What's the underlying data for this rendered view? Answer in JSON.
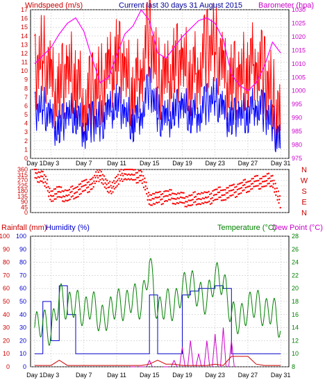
{
  "colors": {
    "wind_speed": "#ff0000",
    "wind_gust": "#0000ff",
    "barometer": "#ff00ff",
    "wind_dir": "#ff0000",
    "rainfall": "#cc0000",
    "humidity": "#0000cc",
    "temperature": "#008000",
    "dew_point": "#cc00cc",
    "title": "#000099",
    "grid": "#c8c8c8"
  },
  "chart_data": [
    {
      "type": "line",
      "title": "Current last 30 days 31 August 2015",
      "left_axis_label": "Windspeed (m/s)",
      "right_axis_label": "Barometer (hpa)",
      "left_ticks": [
        "0",
        "1",
        "2",
        "3",
        "4",
        "5",
        "6",
        "7",
        "8",
        "9",
        "10",
        "11",
        "12",
        "13",
        "14",
        "15",
        "16",
        "17"
      ],
      "right_ticks": [
        "975",
        "980",
        "985",
        "990",
        "995",
        "1000",
        "1005",
        "1010",
        "1015",
        "1020",
        "1025",
        "1030"
      ],
      "ylim_left": [
        0,
        17
      ],
      "ylim_right": [
        975,
        1030
      ],
      "x_labels": [
        "Day 1",
        "Day 3",
        "Day 7",
        "Day 11",
        "Day 15",
        "Day 19",
        "Day 23",
        "Day 27",
        "Day 31"
      ],
      "x_label_days": [
        1,
        3,
        7,
        11,
        15,
        19,
        23,
        27,
        31
      ],
      "xlim_days": [
        0.5,
        32
      ],
      "series": [
        {
          "key": "wind_speed",
          "style": "red",
          "x": [
            1,
            2,
            3,
            4,
            5,
            6,
            7,
            8,
            9,
            10,
            11,
            12,
            13,
            14,
            15,
            16,
            17,
            18,
            19,
            20,
            21,
            22,
            23,
            24,
            25,
            26,
            27,
            28,
            29,
            30,
            31
          ],
          "values": [
            9,
            12,
            8,
            7,
            10,
            9,
            6,
            7,
            8,
            9,
            11,
            10,
            7,
            10,
            14,
            9,
            8,
            10,
            11,
            9,
            10,
            12,
            13,
            9,
            8,
            9,
            10,
            11,
            9,
            7,
            3
          ]
        },
        {
          "key": "wind_gust",
          "style": "blue",
          "x": [
            1,
            2,
            3,
            4,
            5,
            6,
            7,
            8,
            9,
            10,
            11,
            12,
            13,
            14,
            15,
            16,
            17,
            18,
            19,
            20,
            21,
            22,
            23,
            24,
            25,
            26,
            27,
            28,
            29,
            30,
            31
          ],
          "values": [
            5,
            6,
            4,
            3,
            5,
            5,
            3,
            4,
            4,
            5,
            6,
            5,
            4,
            5,
            8,
            5,
            4,
            5,
            6,
            5,
            5,
            6,
            7,
            5,
            4,
            5,
            5,
            6,
            5,
            4,
            1
          ]
        },
        {
          "key": "barometer",
          "style": "magenta",
          "x": [
            1,
            2,
            3,
            4,
            5,
            6,
            7,
            8,
            9,
            10,
            11,
            12,
            13,
            14,
            15,
            16,
            17,
            18,
            19,
            20,
            21,
            22,
            23,
            24,
            25,
            26,
            27,
            28,
            29,
            30,
            31
          ],
          "values": [
            1010,
            1013,
            1016,
            1021,
            1025,
            1027,
            1022,
            1012,
            1003,
            1005,
            1013,
            1021,
            1024,
            1030,
            1026,
            1014,
            1012,
            1016,
            1020,
            1023,
            1026,
            1027,
            1025,
            1019,
            1006,
            1002,
            1000,
            1003,
            1009,
            1018,
            1014
          ]
        }
      ]
    },
    {
      "type": "scatter",
      "ylim": [
        0,
        360
      ],
      "left_ticks": [
        "0",
        "45",
        "90",
        "135",
        "180",
        "225",
        "270",
        "315",
        "360"
      ],
      "right_labels": [
        "N",
        "W",
        "S",
        "E",
        "N"
      ],
      "xlim_days": [
        0.5,
        32
      ],
      "series": [
        {
          "key": "wind_dir",
          "x": [
            1,
            2,
            3,
            4,
            5,
            6,
            7,
            8,
            9,
            10,
            11,
            12,
            13,
            14,
            15,
            16,
            17,
            18,
            19,
            20,
            21,
            22,
            23,
            24,
            25,
            26,
            27,
            28,
            29,
            30,
            31
          ],
          "values": [
            320,
            300,
            150,
            160,
            140,
            180,
            210,
            240,
            330,
            190,
            260,
            340,
            300,
            310,
            120,
            110,
            140,
            130,
            110,
            100,
            130,
            110,
            150,
            160,
            170,
            200,
            230,
            250,
            260,
            280,
            60
          ]
        }
      ]
    },
    {
      "type": "line",
      "left_axis_label_1": "Rainfall (mm)",
      "left_axis_label_2": "Humidity (%)",
      "right_axis_label_1": "Temperature (°C)",
      "right_axis_label_2": "Dew Point (°C)",
      "left_ticks": [
        "0",
        "10",
        "20",
        "30",
        "40",
        "50",
        "60",
        "70",
        "80",
        "90",
        "100"
      ],
      "left_ticks_2": [
        "0",
        "10",
        "20",
        "30",
        "40",
        "50",
        "60",
        "70",
        "80",
        "90",
        "100"
      ],
      "right_ticks": [
        "8",
        "10",
        "12",
        "14",
        "16",
        "18",
        "20",
        "22",
        "24",
        "26",
        "28"
      ],
      "ylim_left": [
        0,
        100
      ],
      "ylim_right": [
        8,
        28
      ],
      "x_labels": [
        "Day 1",
        "Day 3",
        "Day 7",
        "Day 11",
        "Day 15",
        "Day 19",
        "Day 23",
        "Day 27",
        "Day 31"
      ],
      "x_label_days": [
        1,
        3,
        7,
        11,
        15,
        19,
        23,
        27,
        31
      ],
      "xlim_days": [
        0.5,
        32
      ],
      "series": [
        {
          "key": "humidity",
          "axis": "left",
          "x": [
            1,
            2,
            3,
            4,
            5,
            6,
            7,
            8,
            9,
            10,
            11,
            12,
            13,
            14,
            15,
            16,
            17,
            18,
            19,
            20,
            21,
            22,
            23,
            24,
            25,
            26,
            27,
            28,
            29,
            30,
            31
          ],
          "values": [
            10,
            50,
            20,
            62,
            40,
            10,
            10,
            10,
            10,
            10,
            10,
            10,
            10,
            10,
            55,
            10,
            10,
            10,
            55,
            58,
            60,
            60,
            62,
            60,
            10,
            10,
            10,
            10,
            10,
            10,
            10
          ]
        },
        {
          "key": "temperature",
          "axis": "right",
          "x": [
            1,
            2,
            3,
            4,
            5,
            6,
            7,
            8,
            9,
            10,
            11,
            12,
            13,
            14,
            15,
            16,
            17,
            18,
            19,
            20,
            21,
            22,
            23,
            24,
            25,
            26,
            27,
            28,
            29,
            30,
            31
          ],
          "values": [
            14,
            15,
            13,
            19,
            17,
            18,
            16,
            18,
            15,
            16,
            18,
            17,
            19,
            17,
            24,
            16,
            18,
            17,
            20,
            21,
            19,
            18,
            22,
            21,
            16,
            15,
            17,
            18,
            16,
            17,
            14
          ]
        },
        {
          "key": "dew_point",
          "axis": "right",
          "x": [
            13,
            14,
            15,
            17,
            18,
            19,
            20,
            21,
            22,
            23,
            24,
            25
          ],
          "values": [
            8,
            8,
            9,
            8,
            9,
            11,
            12,
            10,
            12,
            13,
            14,
            12
          ]
        },
        {
          "key": "rainfall",
          "axis": "left",
          "x": [
            1,
            2,
            3,
            4,
            5,
            6,
            8,
            10,
            12,
            14,
            15,
            16,
            17,
            18,
            19,
            20,
            21,
            22,
            23,
            24,
            25,
            26,
            27,
            28,
            29,
            30,
            31
          ],
          "values": [
            1,
            1,
            1,
            5,
            1,
            1,
            1,
            1,
            1,
            1,
            2,
            5,
            2,
            2,
            1,
            1,
            1,
            1,
            2,
            1,
            8,
            8,
            8,
            2,
            1,
            1,
            1
          ]
        }
      ]
    }
  ]
}
